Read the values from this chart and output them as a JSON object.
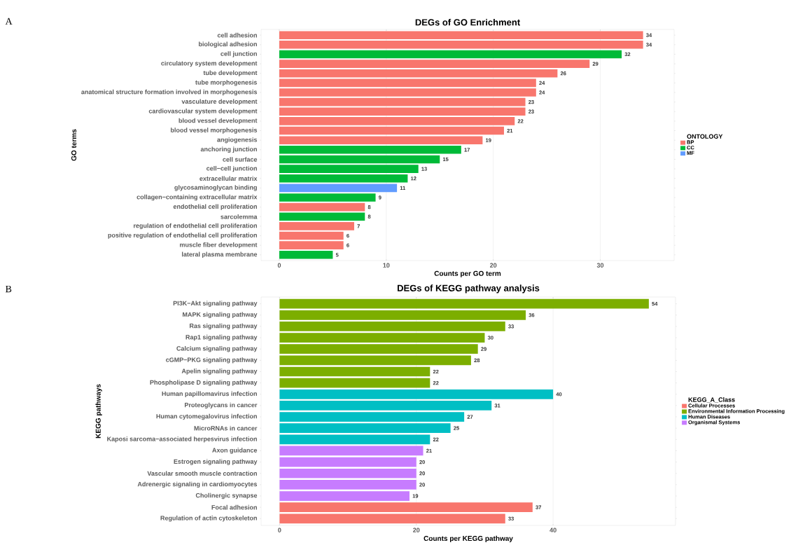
{
  "chart_data": [
    {
      "type": "bar",
      "orientation": "horizontal",
      "title": "DEGs of GO Enrichment",
      "xlabel": "Counts per GO term",
      "ylabel": "GO terms",
      "legend_title": "ONTOLOGY",
      "legend": "right",
      "grid": "x",
      "data_labels": true,
      "annotations": [
        "A"
      ],
      "categories": [
        "cell adhesion",
        "biological adhesion",
        "cell junction",
        "circulatory system development",
        "tube development",
        "tube morphogenesis",
        "anatomical structure formation involved in morphogenesis",
        "vasculature development",
        "cardiovascular system development",
        "blood vessel development",
        "blood vessel morphogenesis",
        "angiogenesis",
        "anchoring junction",
        "cell surface",
        "cell−cell junction",
        "extracellular matrix",
        "glycosaminoglycan binding",
        "collagen−containing extracellular matrix",
        "endothelial cell proliferation",
        "sarcolemma",
        "regulation of endothelial cell proliferation",
        "positive regulation of endothelial cell proliferation",
        "muscle fiber development",
        "lateral plasma membrane"
      ],
      "xlim": [
        -1.7,
        36.9
      ],
      "xticks": [
        0,
        10,
        20,
        30
      ],
      "series": [
        {
          "name": "BP",
          "color": "#f8766d",
          "values": [
            34,
            34,
            null,
            29,
            26,
            24,
            24,
            23,
            23,
            22,
            21,
            19,
            null,
            null,
            null,
            null,
            null,
            null,
            8,
            null,
            7,
            6,
            6,
            null
          ]
        },
        {
          "name": "CC",
          "color": "#00ba38",
          "values": [
            null,
            null,
            32,
            null,
            null,
            null,
            null,
            null,
            null,
            null,
            null,
            null,
            17,
            15,
            13,
            12,
            null,
            9,
            null,
            8,
            null,
            null,
            null,
            5
          ]
        },
        {
          "name": "MF",
          "color": "#619cff",
          "values": [
            null,
            null,
            null,
            null,
            null,
            null,
            null,
            null,
            null,
            null,
            null,
            null,
            null,
            null,
            null,
            null,
            11,
            null,
            null,
            null,
            null,
            null,
            null,
            null
          ]
        }
      ]
    },
    {
      "type": "bar",
      "orientation": "horizontal",
      "title": "DEGs of KEGG pathway analysis",
      "xlabel": "Counts per KEGG pathway",
      "ylabel": "KEGG pathways",
      "legend_title": "KEGG_A_Class",
      "legend": "right",
      "grid": "x",
      "data_labels": true,
      "annotations": [
        "B"
      ],
      "categories": [
        "PI3K−Akt signaling pathway",
        "MAPK signaling pathway",
        "Ras signaling pathway",
        "Rap1 signaling pathway",
        "Calcium signaling pathway",
        "cGMP−PKG signaling pathway",
        "Apelin signaling pathway",
        "Phospholipase D signaling pathway",
        "Human papillomavirus infection",
        "Proteoglycans in cancer",
        "Human cytomegalovirus infection",
        "MicroRNAs in cancer",
        "Kaposi sarcoma−associated herpesvirus infection",
        "Axon guidance",
        "Estrogen signaling pathway",
        "Vascular smooth muscle contraction",
        "Adrenergic signaling in cardiomyocytes",
        "Cholinergic synapse",
        "Focal adhesion",
        "Regulation of actin cytoskeleton"
      ],
      "xlim": [
        -2.7,
        57.9
      ],
      "xticks": [
        0,
        20,
        40
      ],
      "series": [
        {
          "name": "Cellular Processes",
          "color": "#f8766d",
          "values": [
            null,
            null,
            null,
            null,
            null,
            null,
            null,
            null,
            null,
            null,
            null,
            null,
            null,
            null,
            null,
            null,
            null,
            null,
            37,
            33
          ]
        },
        {
          "name": "Environmental Information Processing",
          "color": "#7cae00",
          "values": [
            54,
            36,
            33,
            30,
            29,
            28,
            22,
            22,
            null,
            null,
            null,
            null,
            null,
            null,
            null,
            null,
            null,
            null,
            null,
            null
          ]
        },
        {
          "name": "Human Diseases",
          "color": "#00bfc4",
          "values": [
            null,
            null,
            null,
            null,
            null,
            null,
            null,
            null,
            40,
            31,
            27,
            25,
            22,
            null,
            null,
            null,
            null,
            null,
            null,
            null
          ]
        },
        {
          "name": "Organismal Systems",
          "color": "#c77cff",
          "values": [
            null,
            null,
            null,
            null,
            null,
            null,
            null,
            null,
            null,
            null,
            null,
            null,
            null,
            21,
            20,
            20,
            20,
            19,
            null,
            null
          ]
        }
      ]
    }
  ]
}
